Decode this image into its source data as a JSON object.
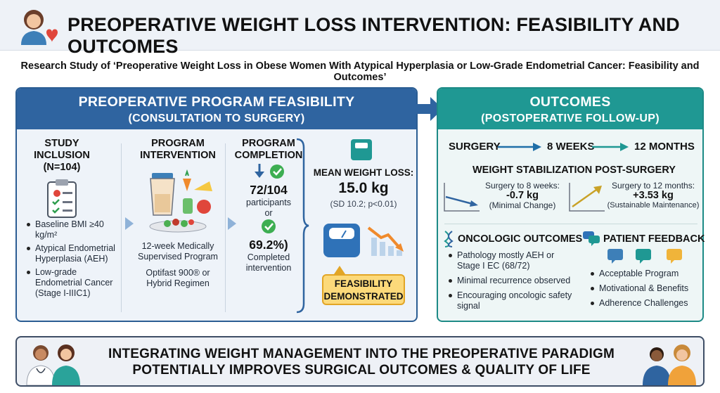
{
  "header": {
    "title": "PREOPERATIVE WEIGHT LOSS INTERVENTION: FEASIBILITY AND OUTCOMES",
    "icon": "woman-heart-icon"
  },
  "subtitle": "Research Study of ‘Preoperative Weight Loss in Obese Women With Atypical Hyperplasia or Low-Grade Endometrial Cancer: Feasibility and Outcomes’",
  "left_panel": {
    "title": "PREOPERATIVE PROGRAM FEASIBILITY",
    "subtitle": "(CONSULTATION TO SURGERY)",
    "inclusion": {
      "title_line1": "STUDY INCLUSION",
      "title_line2": "(N=104)",
      "icon": "clipboard-icon",
      "bullets": [
        "Baseline BMI ≥40 kg/m²",
        "Atypical Endometrial Hyperplasia (AEH)",
        "Low-grade Endometrial Cancer (Stage I-IIIC1)"
      ]
    },
    "intervention": {
      "title_line1": "PROGRAM",
      "title_line2": "INTERVENTION",
      "icon": "shaker-food-icon",
      "text1": "12-week Medically Supervised Program",
      "text2": "Optifast 900® or Hybrid Regimen"
    },
    "completion": {
      "title_line1": "PROGRAM",
      "title_line2": "COMPLETION",
      "count": "72/104",
      "count_label": "participants",
      "or": "or",
      "percent": "69.2%)",
      "percent_label": "Completed intervention"
    },
    "weight_loss": {
      "label": "MEAN WEIGHT LOSS:",
      "value": "15.0 kg",
      "stats": "(SD 10.2; p<0.01)",
      "badge": "FEASIBILITY DEMONSTRATED"
    }
  },
  "right_panel": {
    "title": "OUTCOMES",
    "subtitle": "(POSTOPERATIVE FOLLOW-UP)",
    "timeline": [
      "SURGERY",
      "8 WEEKS",
      "12 MONTHS"
    ],
    "stabilization": {
      "title": "WEIGHT STABILIZATION POST-SURGERY",
      "left_label": "Surgery to 8 weeks:",
      "left_value": "-0.7 kg",
      "left_note": "(Minimal Change)",
      "right_label": "Surgery to 12 months:",
      "right_value": "+3.53 kg",
      "right_note": "(Sustainable Maintenance)"
    },
    "oncologic": {
      "title": "ONCOLOGIC OUTCOMES",
      "icon": "dna-icon",
      "bullets": [
        "Pathology mostly AEH or Stage I EC (68/72)",
        "Minimal recurrence observed",
        "Encouraging oncologic safety signal"
      ]
    },
    "feedback": {
      "title": "PATIENT FEEDBACK",
      "icon": "chat-bubbles-icon",
      "bullets": [
        "Acceptable Program",
        "Motivational & Benefits",
        "Adherence Challenges"
      ]
    }
  },
  "footer": {
    "line1": "INTEGRATING WEIGHT MANAGEMENT INTO THE PREOPERATIVE PARADIGM",
    "line2": "POTENTIALLY IMPROVES SURGICAL OUTCOMES & QUALITY OF LIFE"
  },
  "colors": {
    "left_header": "#2f64a0",
    "right_header": "#1f9893",
    "badge": "#fcd97a",
    "header_bg": "#eef2f7"
  }
}
